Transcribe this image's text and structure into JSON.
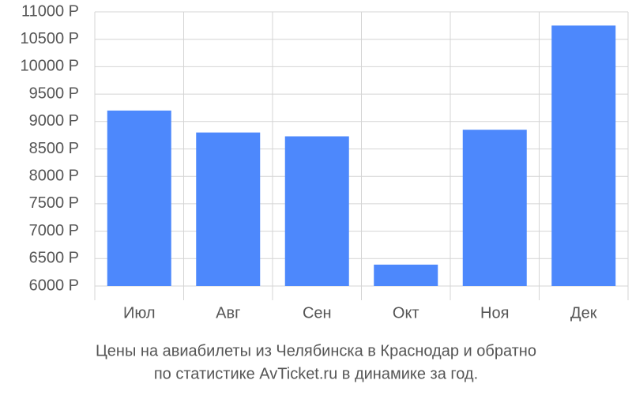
{
  "chart_data": {
    "type": "bar",
    "title": [
      "Цены на авиабилеты из Челябинска в Краснодар и обратно",
      "по статистике AvTicket.ru в динамике за год."
    ],
    "categories": [
      "Июл",
      "Авг",
      "Сен",
      "Окт",
      "Ноя",
      "Дек"
    ],
    "values": [
      9200,
      8800,
      8730,
      6390,
      8850,
      10750
    ],
    "color": "#4d88fc",
    "ylim": [
      6000,
      11000
    ],
    "yticks": [
      {
        "value": 6000,
        "label": "6000 Р"
      },
      {
        "value": 6500,
        "label": "6500 Р"
      },
      {
        "value": 7000,
        "label": "7000 Р"
      },
      {
        "value": 7500,
        "label": "7500 Р"
      },
      {
        "value": 8000,
        "label": "8000 Р"
      },
      {
        "value": 8500,
        "label": "8500 Р"
      },
      {
        "value": 9000,
        "label": "9000 Р"
      },
      {
        "value": 9500,
        "label": "9500 Р"
      },
      {
        "value": 10000,
        "label": "10000 Р"
      },
      {
        "value": 10500,
        "label": "10500 Р"
      },
      {
        "value": 11000,
        "label": "11000 Р"
      }
    ],
    "grid": true
  }
}
